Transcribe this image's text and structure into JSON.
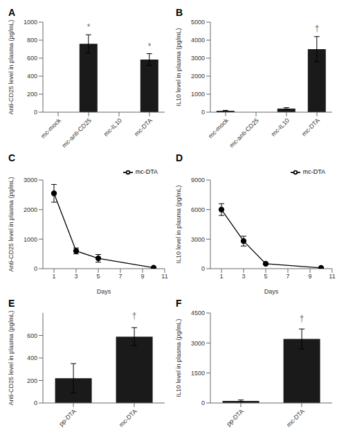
{
  "chart_data": [
    {
      "type": "bar",
      "title": "A",
      "categories": [
        "mc-mock",
        "mc-anti-CD25",
        "mc-IL10",
        "mc-DTA"
      ],
      "values": [
        0,
        760,
        0,
        585
      ],
      "errors": [
        0,
        100,
        0,
        65
      ],
      "color": "#1a1a1a",
      "ylabel": "Anti-CD25 level in plasma (pg/mL)",
      "ylim": [
        0,
        1000
      ],
      "yticks": [
        0,
        200,
        400,
        600,
        800,
        1000
      ],
      "grid": false,
      "annotations": [
        {
          "x": "mc-anti-CD25",
          "y": 880,
          "text": "*"
        },
        {
          "x": "mc-DTA",
          "y": 665,
          "text": "*"
        }
      ]
    },
    {
      "type": "bar",
      "title": "B",
      "categories": [
        "mc-mock",
        "mc-anti-CD25",
        "mc-IL10",
        "mc-DTA"
      ],
      "values": [
        80,
        0,
        200,
        3500
      ],
      "errors": [
        20,
        0,
        50,
        700
      ],
      "color": "#1a1a1a",
      "ylabel": "IL10 level in plasma (pg/mL)",
      "ylim": [
        0,
        5000
      ],
      "yticks": [
        0,
        1000,
        2000,
        3000,
        4000,
        5000
      ],
      "grid": false,
      "annotations": [
        {
          "x": "mc-DTA",
          "y": 4300,
          "text": "†"
        }
      ]
    },
    {
      "type": "line",
      "title": "C",
      "x": [
        1,
        3,
        5,
        10
      ],
      "series": [
        {
          "name": "mc-DTA",
          "color": "#000000",
          "marker": "circle",
          "values": [
            2550,
            600,
            350,
            30
          ],
          "errors": [
            300,
            100,
            130,
            15
          ]
        }
      ],
      "xlabel": "Days",
      "ylabel": "Anti-CD25 level in plasma (pg/mL)",
      "xlim": [
        0,
        11
      ],
      "xticks": [
        1,
        3,
        5,
        7,
        9,
        11
      ],
      "ylim": [
        0,
        3000
      ],
      "yticks": [
        0,
        1000,
        2000,
        3000
      ],
      "grid": false,
      "legend": "upper right"
    },
    {
      "type": "line",
      "title": "D",
      "x": [
        1,
        3,
        5,
        10
      ],
      "series": [
        {
          "name": "mc-DTA",
          "color": "#000000",
          "marker": "circle",
          "values": [
            6000,
            2800,
            500,
            80
          ],
          "errors": [
            600,
            500,
            100,
            30
          ]
        }
      ],
      "xlabel": "Days",
      "ylabel": "IL10 level in plasma (pg/mL)",
      "xlim": [
        0,
        11
      ],
      "xticks": [
        1,
        3,
        5,
        7,
        9,
        11
      ],
      "ylim": [
        0,
        9000
      ],
      "yticks": [
        0,
        3000,
        6000,
        9000
      ],
      "grid": false,
      "legend": "upper right"
    },
    {
      "type": "bar",
      "title": "E",
      "categories": [
        "pp-DTA",
        "mc-DTA"
      ],
      "values": [
        220,
        590
      ],
      "errors": [
        130,
        80
      ],
      "color": "#1a1a1a",
      "ylabel": "Anti-CD25 level in plasma (pg/mL)",
      "ylim": [
        0,
        800
      ],
      "yticks": [
        0,
        200,
        400,
        600
      ],
      "grid": false,
      "annotations": [
        {
          "x": "mc-DTA",
          "y": 720,
          "text": "†"
        }
      ]
    },
    {
      "type": "bar",
      "title": "F",
      "categories": [
        "pp-DTA",
        "mc-DTA"
      ],
      "values": [
        100,
        3200
      ],
      "errors": [
        50,
        500
      ],
      "color": "#1a1a1a",
      "ylabel": "IL10 level in plasma (pg/mL)",
      "ylim": [
        0,
        4500
      ],
      "yticks": [
        0,
        1500,
        3000,
        4500
      ],
      "grid": false,
      "annotations": [
        {
          "x": "mc-DTA",
          "y": 3900,
          "text": "†"
        }
      ]
    }
  ]
}
